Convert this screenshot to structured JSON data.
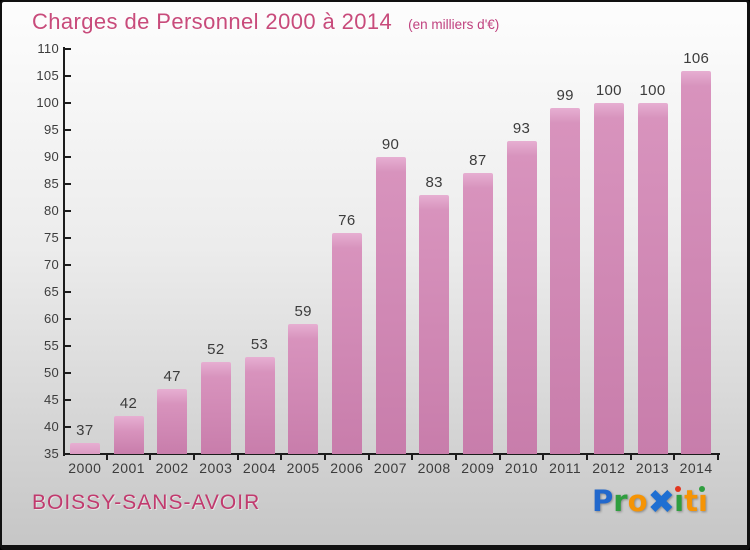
{
  "header": {
    "title": "Charges de Personnel 2000 à 2014",
    "subtitle": "(en milliers d'€)"
  },
  "footer": {
    "commune": "BOISSY-SANS-AVOIR"
  },
  "logo": {
    "text": "Proxiti",
    "letters": [
      {
        "ch": "P",
        "color": "#2268cc"
      },
      {
        "ch": "r",
        "color": "#2f9e3f"
      },
      {
        "ch": "o",
        "color": "#f59405"
      },
      {
        "ch": "✖",
        "color": "#1e6fd2",
        "x_glyph": true
      },
      {
        "ch": "ı",
        "color": "#2f9e3f",
        "dot": "#e2361f"
      },
      {
        "ch": "t",
        "color": "#f59405"
      },
      {
        "ch": "ı",
        "color": "#f59405",
        "dot": "#2f9e3f"
      }
    ]
  },
  "chart_data": {
    "type": "bar",
    "title": "Charges de Personnel 2000 à 2014",
    "subtitle": "(en milliers d'€)",
    "categories": [
      "2000",
      "2001",
      "2002",
      "2003",
      "2004",
      "2005",
      "2006",
      "2007",
      "2008",
      "2009",
      "2010",
      "2011",
      "2012",
      "2013",
      "2014"
    ],
    "values": [
      37,
      42,
      47,
      52,
      53,
      59,
      76,
      90,
      83,
      87,
      93,
      99,
      100,
      100,
      106
    ],
    "xlabel": "",
    "ylabel": "",
    "ylim": [
      35,
      110
    ],
    "ytick_step": 5,
    "grid": false,
    "legend": false,
    "bar_gradient": {
      "top": "#e7afd2",
      "mid": "#d893bd",
      "bottom": "#c87dab"
    },
    "axis_color": "#1c1c1c",
    "label_color": "#3c3c3c"
  },
  "colors": {
    "title": "#c84b7b",
    "subtitle": "#c0427f",
    "footer_text": "#c13a6e",
    "background_top": "#fdfdfd",
    "background_bottom": "#c6c6c6",
    "border": "#111111"
  }
}
